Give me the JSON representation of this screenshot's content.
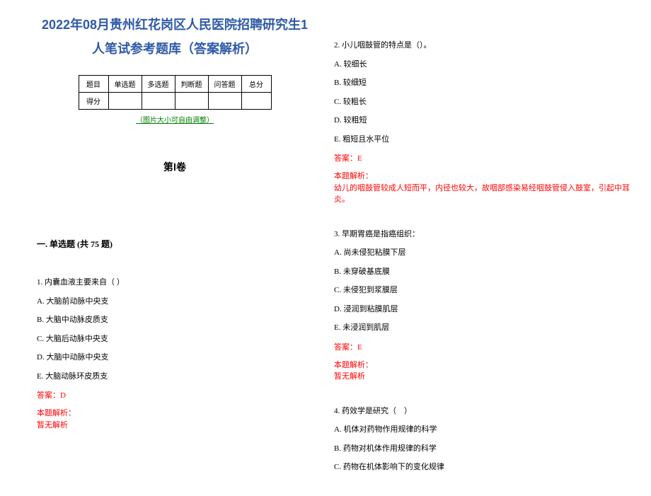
{
  "title_line1": "2022年08月贵州红花岗区人民医院招聘研究生1",
  "title_line2": "人笔试参考题库（答案解析）",
  "table": {
    "headers": [
      "题目",
      "单选题",
      "多选题",
      "判断题",
      "问答题",
      "总分"
    ],
    "row_label": "得分"
  },
  "resize_note": "（图片大小可自由调整）",
  "volume_title": "第Ⅰ卷",
  "section_title": "一. 单选题 (共 75 题)",
  "q1": {
    "stem": "1. 内囊血液主要来自（ ）",
    "opts": [
      "A. 大脑前动脉中央支",
      "B. 大脑中动脉皮质支",
      "C. 大脑后动脉中央支",
      "D. 大脑中动脉中央支",
      "E. 大脑动脉环皮质支"
    ],
    "answer": "答案：D",
    "explain_label": "本题解析：",
    "explain_body": "暂无解析"
  },
  "q2": {
    "stem": "2. 小儿咽鼓管的特点是（）。",
    "opts": [
      "A. 较细长",
      "B. 较细短",
      "C. 较粗长",
      "D. 较粗短",
      "E. 粗短且水平位"
    ],
    "answer": "答案：E",
    "explain_label": "本题解析：",
    "explain_body": "幼儿的咽鼓管较成人短而平，内径也较大，故咽部感染易经咽鼓管侵入鼓室，引起中耳炎。"
  },
  "q3": {
    "stem": "3. 早期胃癌是指癌组织：",
    "opts": [
      "A. 尚未侵犯粘膜下层",
      "B. 未穿破基底膜",
      "C. 未侵犯到浆膜层",
      "D. 浸润到粘膜肌层",
      "E. 未浸润到肌层"
    ],
    "answer": "答案：E",
    "explain_label": "本题解析：",
    "explain_body": "暂无解析"
  },
  "q4": {
    "stem": "4. 药效学是研究（　）",
    "opts": [
      "A. 机体对药物作用规律的科学",
      "B. 药物对机体作用规律的科学",
      "C. 药物在机体影响下的变化规律"
    ]
  }
}
